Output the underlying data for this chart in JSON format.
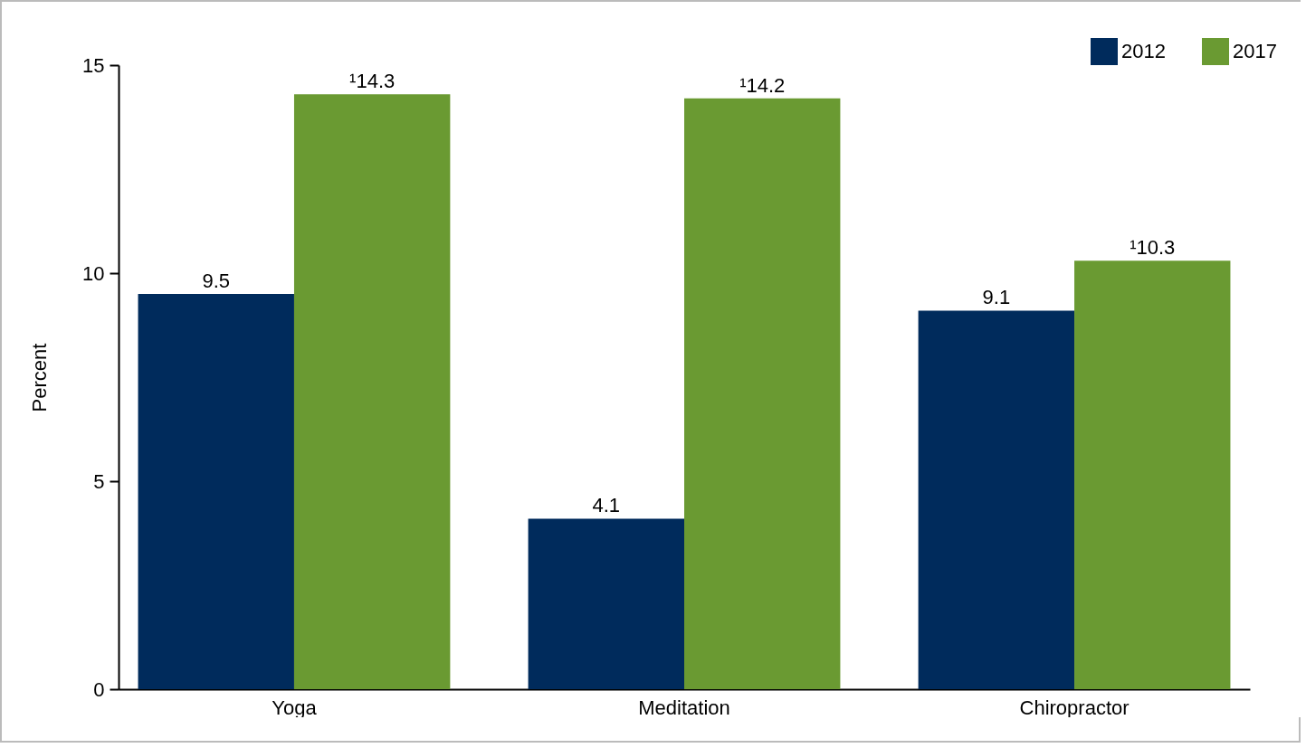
{
  "chart_data": {
    "type": "bar",
    "ylabel": "Percent",
    "categories": [
      "Yoga",
      "Meditation",
      "Chiropractor"
    ],
    "series": [
      {
        "name": "2012",
        "color": "#002b5c",
        "values": [
          9.5,
          4.1,
          9.1
        ],
        "value_labels": [
          "9.5",
          "4.1",
          "9.1"
        ]
      },
      {
        "name": "2017",
        "color": "#6a9a32",
        "values": [
          14.3,
          14.2,
          10.3
        ],
        "value_labels": [
          "¹14.3",
          "¹14.2",
          "¹10.3"
        ]
      }
    ],
    "ylim": [
      0,
      15
    ],
    "yticks": [
      0,
      5,
      10,
      15
    ],
    "grid": false,
    "legend": "top right"
  }
}
